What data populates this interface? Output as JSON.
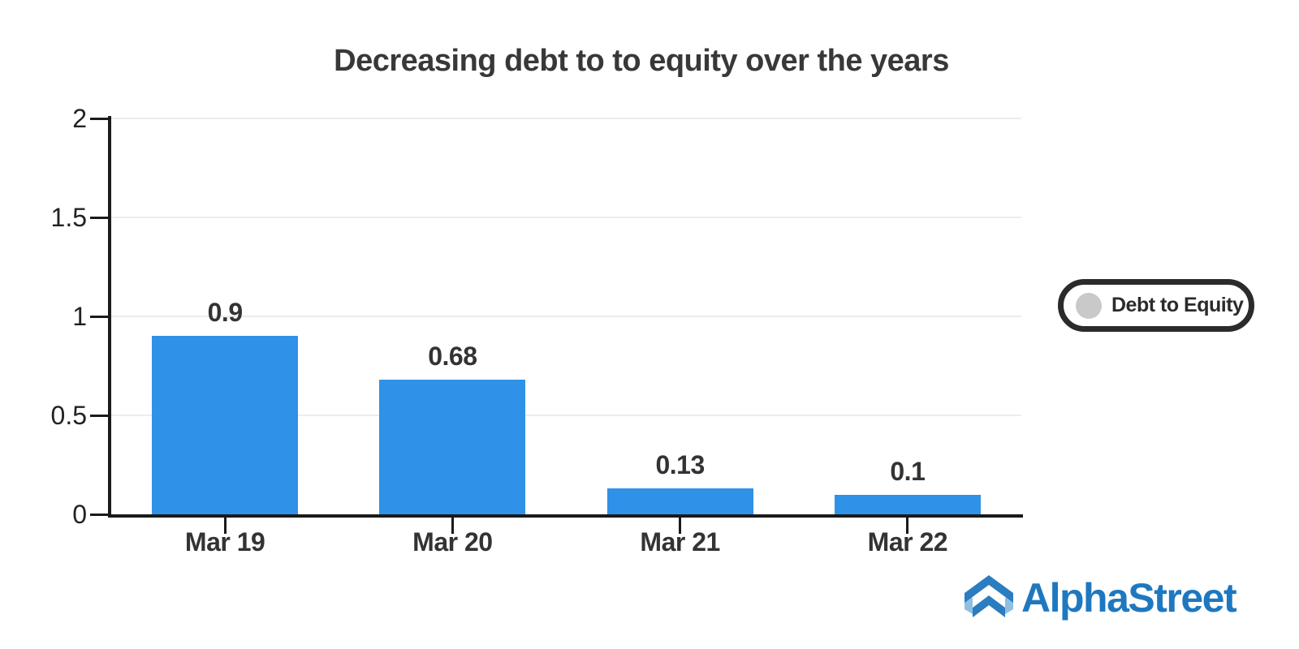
{
  "chart_data": {
    "type": "bar",
    "title": "Decreasing debt to to equity over the years",
    "categories": [
      "Mar 19",
      "Mar 20",
      "Mar 21",
      "Mar 22"
    ],
    "series": [
      {
        "name": "Debt to Equity",
        "values": [
          0.9,
          0.68,
          0.13,
          0.1
        ]
      }
    ],
    "value_labels": [
      "0.9",
      "0.68",
      "0.13",
      "0.1"
    ],
    "xlabel": "",
    "ylabel": "",
    "ylim": [
      0,
      2
    ],
    "y_ticks": [
      "2",
      "1.5",
      "1",
      "0.5",
      "0"
    ],
    "grid": true,
    "legend_position": "right",
    "bar_color": "#2f92e8",
    "grid_color": "#ececec",
    "axis_color": "#1a1a1a"
  },
  "legend": {
    "label": "Debt to Equity",
    "swatch_color": "#c9c9c9",
    "border_color": "#2b2b2b"
  },
  "branding": {
    "logo_text": "AlphaStreet",
    "logo_color": "#1e78c0",
    "icon_dark": "#2b7dc0",
    "icon_light": "#8fc0e2"
  }
}
